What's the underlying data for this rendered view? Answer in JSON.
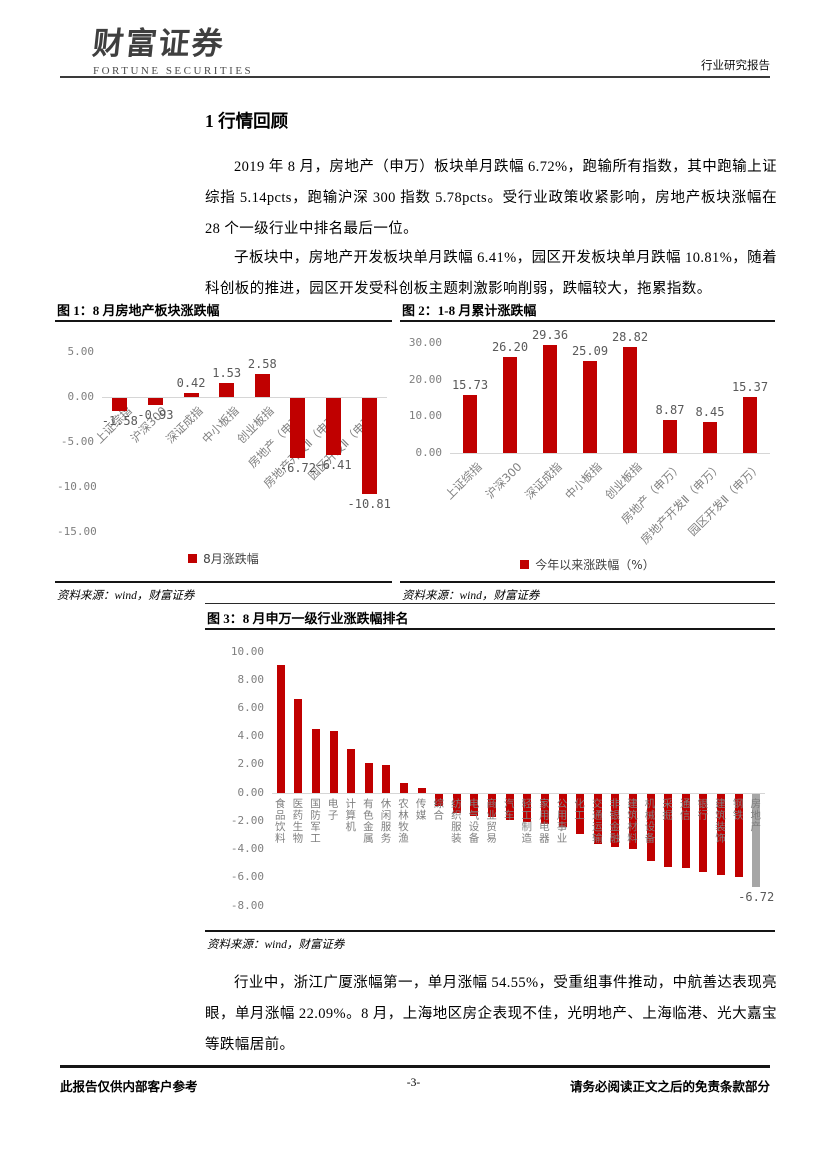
{
  "header": {
    "logo_cn": "财富证券",
    "logo_en": "FORTUNE SECURITIES",
    "report_type": "行业研究报告"
  },
  "section": {
    "title": "1 行情回顾"
  },
  "paragraphs": {
    "p1": "2019 年 8 月，房地产（申万）板块单月跌幅 6.72%，跑输所有指数，其中跑输上证综指 5.14pcts，跑输沪深 300 指数 5.78pcts。受行业政策收紧影响，房地产板块涨幅在 28 个一级行业中排名最后一位。",
    "p2": "子板块中，房地产开发板块单月跌幅 6.41%，园区开发板块单月跌幅 10.81%，随着科创板的推进，园区开发受科创板主题刺激影响削弱，跌幅较大，拖累指数。",
    "p3": "行业中，浙江广厦涨幅第一，单月涨幅 54.55%，受重组事件推动，中航善达表现亮眼，单月涨幅 22.09%。8 月，上海地区房企表现不佳，光明地产、上海临港、光大嘉宝等跌幅居前。"
  },
  "colors": {
    "bar_red": "#C00000",
    "bar_gray": "#A6A6A6"
  },
  "chart_data": [
    {
      "type": "bar",
      "title": "图 1：8 月房地产板块涨跌幅",
      "legend": "8月涨跌幅",
      "source": "资料来源：wind，财富证券",
      "categories": [
        "上证综指",
        "沪深300",
        "深证成指",
        "中小板指",
        "创业板指",
        "房地产（申万）",
        "房地产开发Ⅱ（申万）",
        "园区开发Ⅱ（申万）"
      ],
      "values": [
        -1.58,
        -0.93,
        0.42,
        1.53,
        2.58,
        -6.72,
        -6.41,
        -10.81
      ],
      "data_labels": [
        "-1.58",
        "-0.93",
        "0.42",
        "1.53",
        "2.58",
        "-6.72",
        "-6.41",
        "-10.81"
      ],
      "ticks": [
        5,
        0,
        -5,
        -10,
        -15
      ],
      "ylim": [
        -15,
        5
      ],
      "bar_color": "#C00000",
      "cat_style": "diag"
    },
    {
      "type": "bar",
      "title": "图 2：1-8 月累计涨跌幅",
      "legend": "今年以来涨跌幅（%）",
      "source": "资料来源：wind，财富证券",
      "categories": [
        "上证综指",
        "沪深300",
        "深证成指",
        "中小板指",
        "创业板指",
        "房地产（申万）",
        "房地产开发Ⅱ（申万）",
        "园区开发Ⅱ（申万）"
      ],
      "values": [
        15.73,
        26.2,
        29.36,
        25.09,
        28.82,
        8.87,
        8.45,
        15.37
      ],
      "data_labels": [
        "15.73",
        "26.20",
        "29.36",
        "25.09",
        "28.82",
        "8.87",
        "8.45",
        "15.37"
      ],
      "ticks": [
        30,
        20,
        10,
        0
      ],
      "ylim": [
        0,
        30
      ],
      "bar_color": "#C00000",
      "cat_style": "diag"
    },
    {
      "type": "bar",
      "title": "图 3：8 月申万一级行业涨跌幅排名",
      "legend": null,
      "source": "资料来源：wind，财富证券",
      "categories": [
        "食品饮料",
        "医药生物",
        "国防军工",
        "电子",
        "计算机",
        "有色金属",
        "休闲服务",
        "农林牧渔",
        "传媒",
        "综合",
        "纺织服装",
        "电气设备",
        "商业贸易",
        "汽车",
        "轻工制造",
        "家用电器",
        "公用事业",
        "化工",
        "交通运输",
        "非银金融",
        "建筑材料",
        "机械设备",
        "采掘",
        "通信",
        "银行",
        "建筑装饰",
        "钢铁",
        "房地产"
      ],
      "values": [
        9.05,
        6.65,
        4.55,
        4.4,
        3.1,
        2.1,
        1.95,
        0.7,
        0.3,
        -0.95,
        -1.45,
        -1.65,
        -1.75,
        -1.95,
        -2.1,
        -2.2,
        -2.45,
        -2.95,
        -3.65,
        -3.85,
        -4.0,
        -4.85,
        -5.25,
        -5.35,
        -5.6,
        -5.85,
        -6.0,
        -6.72
      ],
      "data_labels": [
        null,
        null,
        null,
        null,
        null,
        null,
        null,
        null,
        null,
        null,
        null,
        null,
        null,
        null,
        null,
        null,
        null,
        null,
        null,
        null,
        null,
        null,
        null,
        null,
        null,
        null,
        null,
        "-6.72"
      ],
      "ticks": [
        10,
        8,
        6,
        4,
        2,
        0,
        -2,
        -4,
        -6,
        -8
      ],
      "ylim": [
        -8,
        10
      ],
      "bar_color": "#C00000",
      "bar_color_overrides": {
        "27": "#A6A6A6"
      },
      "cat_style": "vert"
    }
  ],
  "footer": {
    "left": "此报告仅供内部客户参考",
    "page": "-3-",
    "right": "请务必阅读正文之后的免责条款部分"
  }
}
